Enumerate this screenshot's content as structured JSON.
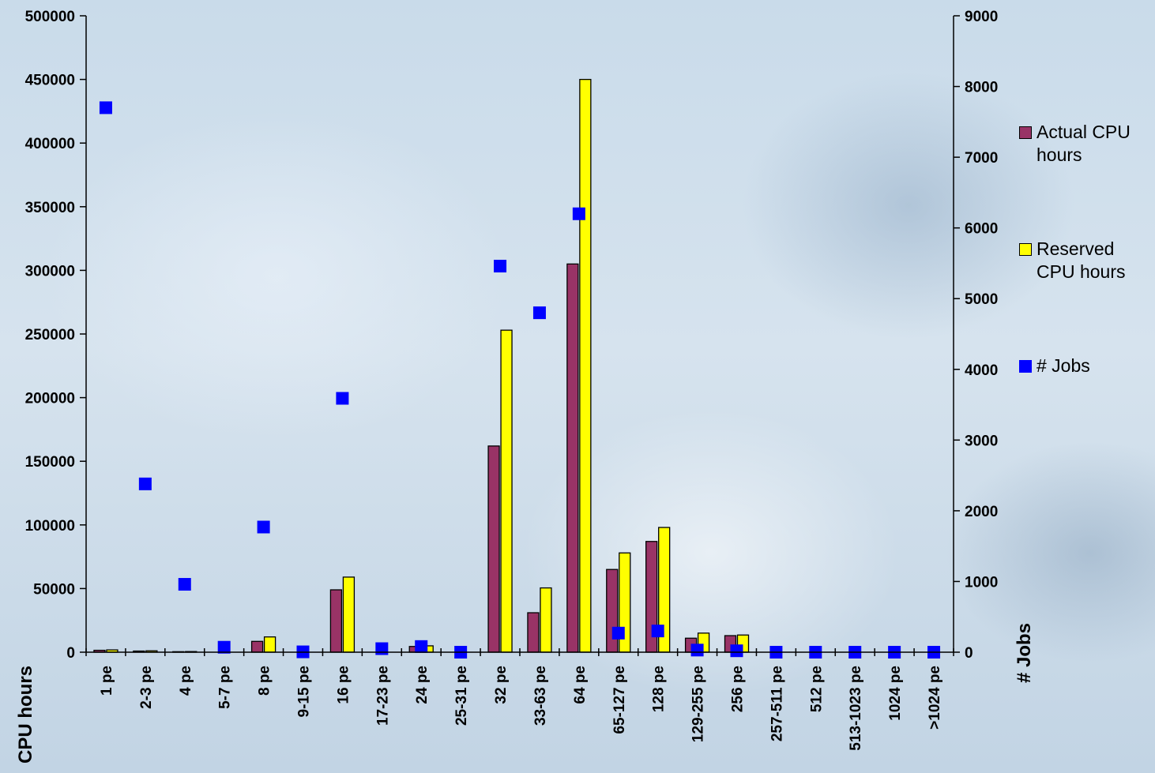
{
  "chart_data": {
    "type": "bar",
    "categories": [
      "1 pe",
      "2-3 pe",
      "4 pe",
      "5-7 pe",
      "8 pe",
      "9-15 pe",
      "16 pe",
      "17-23 pe",
      "24 pe",
      "25-31 pe",
      "32 pe",
      "33-63 pe",
      "64 pe",
      "65-127 pe",
      "128 pe",
      "129-255 pe",
      "256 pe",
      "257-511 pe",
      "512 pe",
      "513-1023 pe",
      "1024 pe",
      ">1024 pe"
    ],
    "series": [
      {
        "name": "Actual CPU hours",
        "axis": "left",
        "type": "bar",
        "color": "#993366",
        "values": [
          1500,
          900,
          400,
          0,
          8500,
          0,
          49000,
          0,
          4500,
          0,
          162000,
          31000,
          305000,
          65000,
          87000,
          11000,
          13000,
          0,
          0,
          0,
          0,
          0
        ]
      },
      {
        "name": "Reserved CPU hours",
        "axis": "left",
        "type": "bar",
        "color": "#ffff00",
        "values": [
          1800,
          1100,
          500,
          0,
          12000,
          0,
          59000,
          0,
          5000,
          0,
          253000,
          50500,
          450000,
          78000,
          98000,
          15000,
          13500,
          0,
          0,
          0,
          0,
          0
        ]
      },
      {
        "name": "# Jobs",
        "axis": "right",
        "type": "scatter",
        "color": "#0000ff",
        "values": [
          7700,
          2380,
          960,
          70,
          1770,
          5,
          3590,
          50,
          80,
          0,
          5460,
          4800,
          6200,
          270,
          300,
          30,
          20,
          0,
          0,
          0,
          0,
          0
        ]
      }
    ],
    "ylabel": "CPU hours",
    "y2label": "# Jobs",
    "ylim": [
      0,
      500000
    ],
    "y2lim": [
      0,
      9000
    ],
    "yticks": [
      "0",
      "50000",
      "100000",
      "150000",
      "200000",
      "250000",
      "300000",
      "350000",
      "400000",
      "450000",
      "500000"
    ],
    "y2ticks": [
      "0",
      "1000",
      "2000",
      "3000",
      "4000",
      "5000",
      "6000",
      "7000",
      "8000",
      "9000"
    ],
    "legend_position": "right",
    "grid": false
  }
}
